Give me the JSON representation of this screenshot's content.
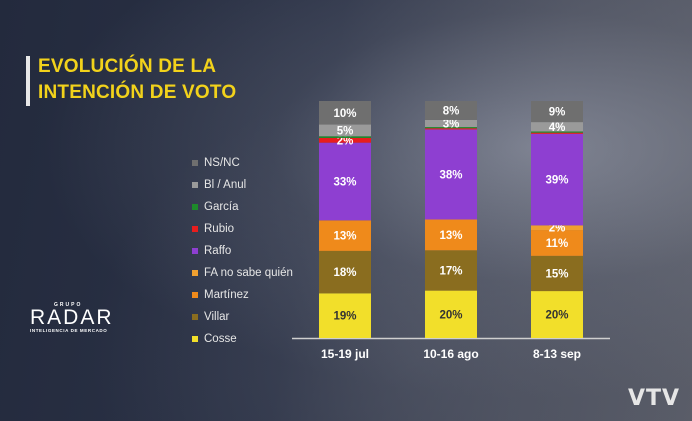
{
  "title_lines": [
    "EVOLUCIÓN DE LA",
    "INTENCIÓN DE VOTO"
  ],
  "logo": {
    "top": "GRUPO",
    "main": "RADAR",
    "bottom": "INTELIGENCIA DE MERCADO"
  },
  "watermark": "VTV",
  "chart_data": {
    "type": "bar",
    "stacked": true,
    "categories": [
      "15-19 jul",
      "10-16 ago",
      "8-13 sep"
    ],
    "series": [
      {
        "name": "Cosse",
        "color": "#f2df2a",
        "label_color": "#333333",
        "values": [
          19,
          20,
          20
        ],
        "labels": [
          "19%",
          "20%",
          "20%"
        ]
      },
      {
        "name": "Villar",
        "color": "#8a6d1f",
        "label_color": "#ffffff",
        "values": [
          18,
          17,
          15
        ],
        "labels": [
          "18%",
          "17%",
          "15%"
        ]
      },
      {
        "name": "Martínez",
        "color": "#ef8a1b",
        "label_color": "#ffffff",
        "values": [
          13,
          13,
          11
        ],
        "labels": [
          "13%",
          "13%",
          "11%"
        ]
      },
      {
        "name": "FA no sabe quién",
        "color": "#f0a030",
        "label_color": "#ffffff",
        "values": [
          0,
          0,
          2
        ],
        "labels": [
          "",
          "",
          "2%"
        ]
      },
      {
        "name": "Raffo",
        "color": "#8e3fd1",
        "label_color": "#ffffff",
        "values": [
          33,
          38,
          39
        ],
        "labels": [
          "33%",
          "38%",
          "39%"
        ]
      },
      {
        "name": "Rubio",
        "color": "#e81d1d",
        "label_color": "#ffffff",
        "values": [
          2,
          0.5,
          0.5
        ],
        "labels": [
          "2%",
          "",
          ""
        ]
      },
      {
        "name": "García",
        "color": "#1d8a2a",
        "label_color": "#ffffff",
        "values": [
          0.7,
          0.5,
          0.5
        ],
        "labels": [
          "",
          "",
          ""
        ]
      },
      {
        "name": "Bl / Anul",
        "color": "#9a9a9a",
        "label_color": "#ffffff",
        "values": [
          5,
          3,
          4
        ],
        "labels": [
          "5%",
          "3%",
          "4%"
        ]
      },
      {
        "name": "NS/NC",
        "color": "#6f6f6f",
        "label_color": "#ffffff",
        "values": [
          10,
          8,
          9
        ],
        "labels": [
          "10%",
          "8%",
          "9%"
        ]
      }
    ],
    "legend_order": [
      "NS/NC",
      "Bl / Anul",
      "García",
      "Rubio",
      "Raffo",
      "FA no sabe quién",
      "Martínez",
      "Villar",
      "Cosse"
    ],
    "legend_colors": [
      "#6f6f6f",
      "#9a9a9a",
      "#1d8a2a",
      "#e81d1d",
      "#8e3fd1",
      "#f0a030",
      "#ef8a1b",
      "#8a6d1f",
      "#f2df2a"
    ],
    "legend_placement": "left"
  }
}
